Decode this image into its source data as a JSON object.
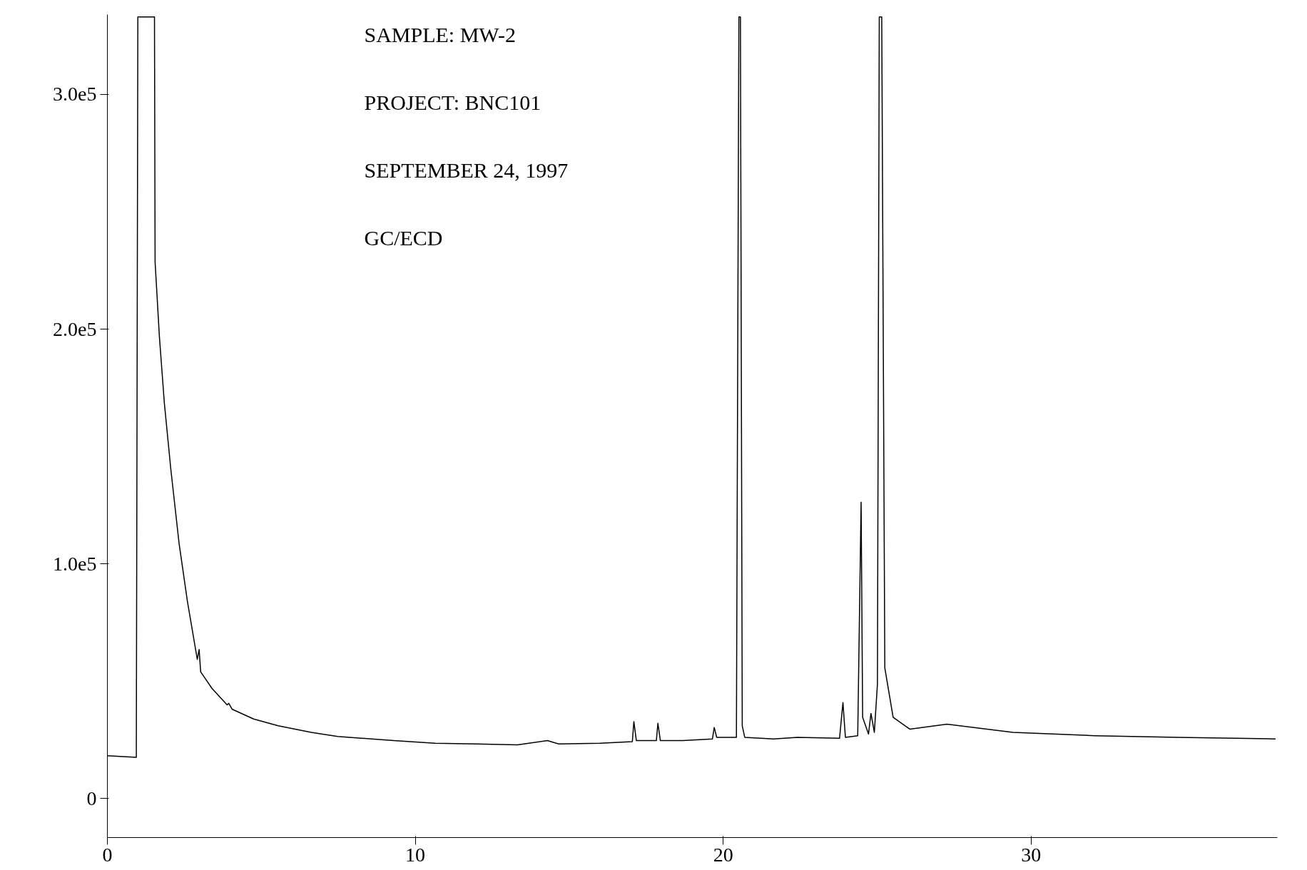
{
  "chart_data": {
    "type": "line",
    "annotations": [
      "SAMPLE:  MW-2",
      "PROJECT:  BNC101",
      "SEPTEMBER 24, 1997",
      "GC/ECD"
    ],
    "x": [
      0,
      0.94,
      0.99,
      1.53,
      1.55,
      1.69,
      1.85,
      2.06,
      2.33,
      2.6,
      2.92,
      2.98,
      3.03,
      3.4,
      3.89,
      3.94,
      4.05,
      4.75,
      5.55,
      6.62,
      7.48,
      9.3,
      10.64,
      11.98,
      13.32,
      14.29,
      14.66,
      16.0,
      17.05,
      17.1,
      17.18,
      17.83,
      17.88,
      17.96,
      18.69,
      19.65,
      19.71,
      19.79,
      20.43,
      20.51,
      20.56,
      20.62,
      20.7,
      21.64,
      22.41,
      23.78,
      23.89,
      23.97,
      24.37,
      24.48,
      24.53,
      24.72,
      24.8,
      24.91,
      25.01,
      25.07,
      25.15,
      25.25,
      25.52,
      26.06,
      27.27,
      29.41,
      32.09,
      34.77,
      37.94
    ],
    "series": [
      {
        "color": "#000000",
        "values": [
          18300,
          17600,
          333000,
          333000,
          228600,
          196800,
          168600,
          140400,
          108600,
          84000,
          59300,
          63500,
          54000,
          46900,
          39900,
          40600,
          38100,
          33900,
          31000,
          28200,
          26500,
          24700,
          23600,
          23300,
          22900,
          24700,
          23300,
          23600,
          24300,
          32800,
          24700,
          24700,
          32100,
          24700,
          24700,
          25400,
          30300,
          26100,
          26100,
          333000,
          333000,
          31000,
          26100,
          25400,
          26100,
          25700,
          40900,
          26100,
          26800,
          126300,
          34600,
          27500,
          36300,
          28200,
          48700,
          333000,
          333000,
          55700,
          34600,
          29600,
          31700,
          28200,
          26800,
          26100,
          25400
        ]
      }
    ],
    "xlim": [
      0,
      38
    ],
    "ylim": [
      -16600,
      334000
    ],
    "xticks": [
      0,
      10,
      20,
      30
    ],
    "yticks": [
      0,
      {
        "value": 100000,
        "label": "1.0e5"
      },
      {
        "value": 200000,
        "label": "2.0e5"
      },
      {
        "value": 300000,
        "label": "3.0e5"
      }
    ],
    "grid": false,
    "marker": "none",
    "line_style": "solid"
  }
}
